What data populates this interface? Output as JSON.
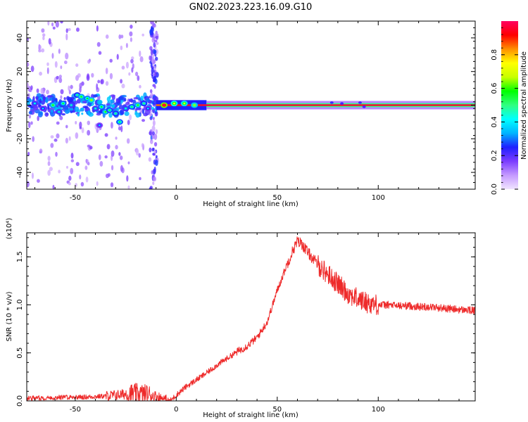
{
  "title": "GN02.2023.223.16.09.G10",
  "chart_data": [
    {
      "type": "heatmap",
      "name": "spectrogram",
      "xlabel": "Height of straight line (km)",
      "ylabel": "Frequency (Hz)",
      "xlim": [
        -74,
        148
      ],
      "ylim": [
        -50,
        50
      ],
      "xticks": [
        -50,
        0,
        50,
        100
      ],
      "yticks": [
        -40,
        -20,
        0,
        20,
        40
      ],
      "colorbar": {
        "label": "Normalized spectral amplitude",
        "range": [
          0,
          1
        ],
        "ticks": [
          0.0,
          0.2,
          0.4,
          0.6,
          0.8
        ],
        "stops": [
          "#f0e4ff",
          "#c59aff",
          "#7b3cff",
          "#2020ff",
          "#00b4ff",
          "#00ffff",
          "#30ff80",
          "#00ff00",
          "#c8ff00",
          "#ffff00",
          "#ff9000",
          "#ff0000",
          "#ff0060"
        ]
      },
      "bands": [
        {
          "x0": -10,
          "x1": 15,
          "f0": -3,
          "f1": 3,
          "level": 0.25
        },
        {
          "x0": 15,
          "x1": 148,
          "f0": -2.5,
          "f1": 2.5,
          "level": 0.1
        },
        {
          "x0": 15,
          "x1": 148,
          "f0": -1.2,
          "f1": 1.2,
          "level": 0.5
        },
        {
          "x0": 15,
          "x1": 148,
          "f0": -0.5,
          "f1": 0.5,
          "level": 1.0
        },
        {
          "x0": -10,
          "x1": 15,
          "f0": -0.5,
          "f1": 0.5,
          "level": 0.85
        }
      ],
      "blobs": [
        {
          "x": -70,
          "f": 1,
          "level": 0.28
        },
        {
          "x": -66,
          "f": -2,
          "level": 0.25
        },
        {
          "x": -61,
          "f": 0,
          "level": 0.45
        },
        {
          "x": -58,
          "f": -4,
          "level": 0.3
        },
        {
          "x": -56,
          "f": 1,
          "level": 0.4
        },
        {
          "x": -52,
          "f": 0,
          "level": 0.3
        },
        {
          "x": -49,
          "f": 6,
          "level": 0.35
        },
        {
          "x": -47,
          "f": 5,
          "level": 0.45
        },
        {
          "x": -44,
          "f": 4,
          "level": 0.42
        },
        {
          "x": -42,
          "f": 3,
          "level": 0.5
        },
        {
          "x": -40,
          "f": -2,
          "level": 0.3
        },
        {
          "x": -37,
          "f": -1,
          "level": 0.42
        },
        {
          "x": -35,
          "f": -4,
          "level": 0.45
        },
        {
          "x": -33,
          "f": -3,
          "level": 0.38
        },
        {
          "x": -30,
          "f": -5,
          "level": 0.35
        },
        {
          "x": -28,
          "f": -10,
          "level": 0.4
        },
        {
          "x": -38,
          "f": -12,
          "level": 0.22
        },
        {
          "x": -25,
          "f": -2,
          "level": 0.3
        },
        {
          "x": -22,
          "f": -1,
          "level": 0.38
        },
        {
          "x": -19,
          "f": 0,
          "level": 0.45
        },
        {
          "x": -16,
          "f": 1,
          "level": 0.35
        },
        {
          "x": -14,
          "f": -2,
          "level": 0.25
        },
        {
          "x": -6,
          "f": 0,
          "level": 0.9
        },
        {
          "x": -1,
          "f": 1,
          "level": 0.6
        },
        {
          "x": 4,
          "f": 1,
          "level": 0.55
        },
        {
          "x": 9,
          "f": 0,
          "level": 0.5
        }
      ],
      "speckle_columns": [
        -72,
        -67,
        -62,
        -58,
        -53,
        -48,
        -43,
        -38,
        -33,
        -28,
        -23,
        -18,
        -12,
        -10.5
      ],
      "tail_glints": [
        {
          "x": 77,
          "f": 1.5
        },
        {
          "x": 82,
          "f": 1
        },
        {
          "x": 91,
          "f": 1.5
        },
        {
          "x": 93,
          "f": -1
        }
      ]
    },
    {
      "type": "line",
      "name": "snr",
      "xlabel": "Height of straight line (km)",
      "ylabel": "SNR (10 * v/v)",
      "y_multiplier": "(x10⁴)",
      "xlim": [
        -74,
        148
      ],
      "ylim": [
        0,
        1.75
      ],
      "xticks": [
        -50,
        0,
        50,
        100
      ],
      "yticks": [
        0.0,
        0.5,
        1.0,
        1.5
      ],
      "line_color": "#ee2a2a",
      "series": [
        {
          "name": "SNR",
          "x": [
            -74,
            -65,
            -55,
            -45,
            -35,
            -30,
            -25,
            -20,
            -15,
            -10,
            -5,
            -3,
            0,
            5,
            10,
            15,
            20,
            25,
            30,
            35,
            40,
            45,
            50,
            55,
            58,
            60,
            62,
            65,
            70,
            75,
            80,
            85,
            90,
            95,
            100,
            105,
            110,
            115,
            120,
            125,
            130,
            135,
            140,
            148
          ],
          "y": [
            0.03,
            0.03,
            0.04,
            0.04,
            0.05,
            0.06,
            0.07,
            0.08,
            0.07,
            0.05,
            0.01,
            0.0,
            0.06,
            0.15,
            0.22,
            0.29,
            0.37,
            0.44,
            0.51,
            0.57,
            0.66,
            0.82,
            1.15,
            1.43,
            1.58,
            1.66,
            1.64,
            1.55,
            1.42,
            1.32,
            1.22,
            1.12,
            1.06,
            1.02,
            1.0,
            1.0,
            0.99,
            0.99,
            0.98,
            0.98,
            0.97,
            0.96,
            0.95,
            0.94
          ]
        }
      ]
    }
  ]
}
